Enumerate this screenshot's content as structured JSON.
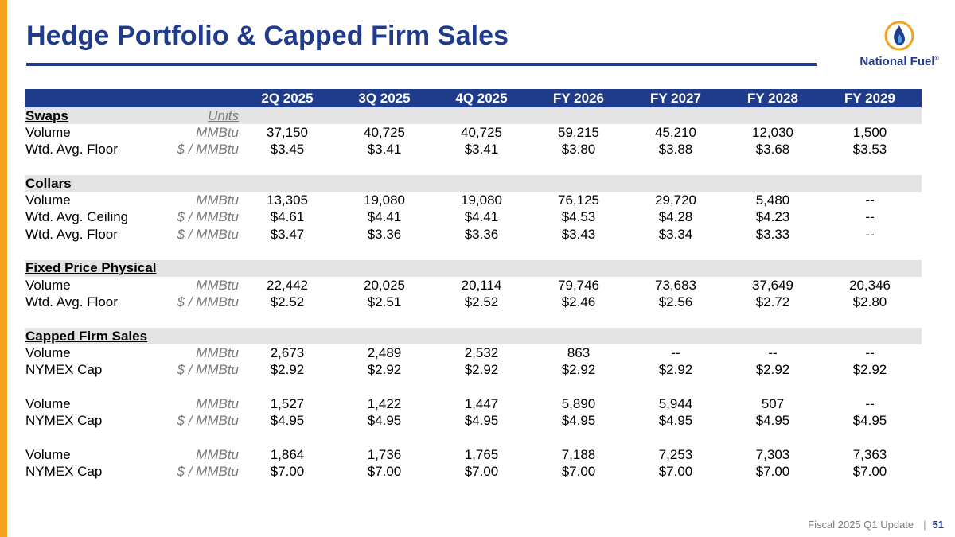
{
  "slide": {
    "title": "Hedge Portfolio & Capped Firm Sales",
    "footer_text": "Fiscal 2025 Q1 Update",
    "page_number": "51",
    "logo_text": "National Fuel",
    "logo_mark": "®"
  },
  "colors": {
    "navy": "#1F3B8C",
    "orange": "#F4A11E",
    "section_gray": "#E3E3E3"
  },
  "table": {
    "columns": [
      "2Q 2025",
      "3Q 2025",
      "4Q 2025",
      "FY 2026",
      "FY 2027",
      "FY 2028",
      "FY 2029"
    ],
    "rows": [
      {
        "kind": "section",
        "label": "Swaps",
        "unit": "Units",
        "values": []
      },
      {
        "kind": "data",
        "label": "Volume",
        "unit": "MMBtu",
        "values": [
          "37,150",
          "40,725",
          "40,725",
          "59,215",
          "45,210",
          "12,030",
          "1,500"
        ]
      },
      {
        "kind": "data",
        "label": "Wtd. Avg. Floor",
        "unit": "$ / MMBtu",
        "values": [
          "$3.45",
          "$3.41",
          "$3.41",
          "$3.80",
          "$3.88",
          "$3.68",
          "$3.53"
        ]
      },
      {
        "kind": "spacer"
      },
      {
        "kind": "section",
        "label": "Collars",
        "unit": "",
        "values": []
      },
      {
        "kind": "data",
        "label": "Volume",
        "unit": "MMBtu",
        "values": [
          "13,305",
          "19,080",
          "19,080",
          "76,125",
          "29,720",
          "5,480",
          "--"
        ]
      },
      {
        "kind": "data",
        "label": "Wtd. Avg. Ceiling",
        "unit": "$ / MMBtu",
        "values": [
          "$4.61",
          "$4.41",
          "$4.41",
          "$4.53",
          "$4.28",
          "$4.23",
          "--"
        ]
      },
      {
        "kind": "data",
        "label": "Wtd. Avg. Floor",
        "unit": "$ / MMBtu",
        "values": [
          "$3.47",
          "$3.36",
          "$3.36",
          "$3.43",
          "$3.34",
          "$3.33",
          "--"
        ]
      },
      {
        "kind": "spacer"
      },
      {
        "kind": "section",
        "label": "Fixed Price Physical",
        "unit": "",
        "values": []
      },
      {
        "kind": "data",
        "label": "Volume",
        "unit": "MMBtu",
        "values": [
          "22,442",
          "20,025",
          "20,114",
          "79,746",
          "73,683",
          "37,649",
          "20,346"
        ]
      },
      {
        "kind": "data",
        "label": "Wtd. Avg. Floor",
        "unit": "$ / MMBtu",
        "values": [
          "$2.52",
          "$2.51",
          "$2.52",
          "$2.46",
          "$2.56",
          "$2.72",
          "$2.80"
        ]
      },
      {
        "kind": "spacer"
      },
      {
        "kind": "section",
        "label": "Capped Firm Sales",
        "unit": "",
        "values": []
      },
      {
        "kind": "data",
        "label": "Volume",
        "unit": "MMBtu",
        "values": [
          "2,673",
          "2,489",
          "2,532",
          "863",
          "--",
          "--",
          "--"
        ]
      },
      {
        "kind": "data",
        "label": "NYMEX Cap",
        "unit": "$ / MMBtu",
        "values": [
          "$2.92",
          "$2.92",
          "$2.92",
          "$2.92",
          "$2.92",
          "$2.92",
          "$2.92"
        ]
      },
      {
        "kind": "spacer"
      },
      {
        "kind": "data",
        "label": "Volume",
        "unit": "MMBtu",
        "values": [
          "1,527",
          "1,422",
          "1,447",
          "5,890",
          "5,944",
          "507",
          "--"
        ]
      },
      {
        "kind": "data",
        "label": "NYMEX Cap",
        "unit": "$ / MMBtu",
        "values": [
          "$4.95",
          "$4.95",
          "$4.95",
          "$4.95",
          "$4.95",
          "$4.95",
          "$4.95"
        ]
      },
      {
        "kind": "spacer"
      },
      {
        "kind": "data",
        "label": "Volume",
        "unit": "MMBtu",
        "values": [
          "1,864",
          "1,736",
          "1,765",
          "7,188",
          "7,253",
          "7,303",
          "7,363"
        ]
      },
      {
        "kind": "data",
        "label": "NYMEX Cap",
        "unit": "$ / MMBtu",
        "values": [
          "$7.00",
          "$7.00",
          "$7.00",
          "$7.00",
          "$7.00",
          "$7.00",
          "$7.00"
        ]
      }
    ]
  }
}
